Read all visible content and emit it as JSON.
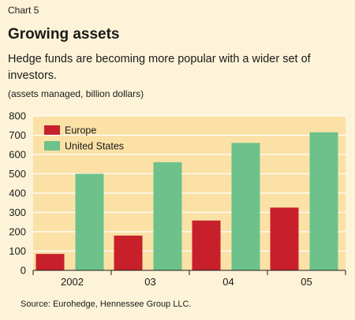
{
  "header": {
    "chart_number": "Chart 5",
    "title": "Growing assets",
    "subtitle": "Hedge funds are becoming more popular with a wider set of investors.",
    "units": "(assets managed, billion dollars)"
  },
  "footer": {
    "source": "Source: Eurohedge, Hennessee Group LLC."
  },
  "colors": {
    "europe": "#c8202b",
    "united_states": "#6cc28a",
    "grid": "#ffffff",
    "plot_background": "#fbe1a6"
  },
  "chart_data": {
    "type": "bar",
    "categories": [
      "2002",
      "03",
      "04",
      "05"
    ],
    "series": [
      {
        "name": "Europe",
        "values": [
          85,
          180,
          258,
          325
        ]
      },
      {
        "name": "United States",
        "values": [
          500,
          560,
          660,
          715
        ]
      }
    ],
    "title": "Growing assets",
    "subtitle": "Hedge funds are becoming more popular with a wider set of investors.",
    "ylabel": "(assets managed, billion dollars)",
    "ylim": [
      0,
      800
    ],
    "yticks": [
      "0",
      "100",
      "200",
      "300",
      "400",
      "500",
      "600",
      "700",
      "800"
    ],
    "grid": true,
    "legend": "top-left"
  }
}
